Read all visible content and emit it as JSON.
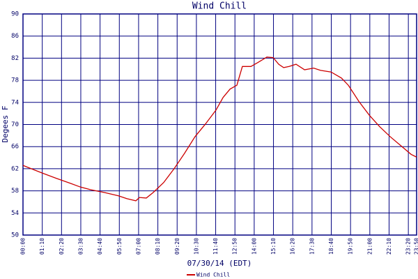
{
  "chart_data": {
    "type": "line",
    "title": "Wind Chill",
    "x_label": "07/30/14 (EDT)",
    "y_label": "Degees F",
    "xlim": [
      0,
      1430
    ],
    "xticks": [
      {
        "value": 0,
        "label": "00:00"
      },
      {
        "value": 70,
        "label": "01:10"
      },
      {
        "value": 140,
        "label": "02:20"
      },
      {
        "value": 210,
        "label": "03:30"
      },
      {
        "value": 280,
        "label": "04:40"
      },
      {
        "value": 350,
        "label": "05:50"
      },
      {
        "value": 420,
        "label": "07:00"
      },
      {
        "value": 490,
        "label": "08:10"
      },
      {
        "value": 560,
        "label": "09:20"
      },
      {
        "value": 630,
        "label": "10:30"
      },
      {
        "value": 700,
        "label": "11:40"
      },
      {
        "value": 770,
        "label": "12:50"
      },
      {
        "value": 840,
        "label": "14:00"
      },
      {
        "value": 910,
        "label": "15:10"
      },
      {
        "value": 980,
        "label": "16:20"
      },
      {
        "value": 1050,
        "label": "17:30"
      },
      {
        "value": 1120,
        "label": "18:40"
      },
      {
        "value": 1190,
        "label": "19:50"
      },
      {
        "value": 1260,
        "label": "21:00"
      },
      {
        "value": 1330,
        "label": "22:10"
      },
      {
        "value": 1400,
        "label": "23:20"
      },
      {
        "value": 1430,
        "label": "23:50"
      }
    ],
    "ylim": [
      50,
      90
    ],
    "yticks": [
      50,
      54,
      58,
      62,
      66,
      70,
      74,
      78,
      82,
      86,
      90
    ],
    "grid": true,
    "x": [
      0,
      30,
      71,
      119,
      170,
      208,
      246,
      296,
      347,
      377,
      410,
      423,
      448,
      473,
      511,
      549,
      587,
      625,
      663,
      701,
      727,
      752,
      777,
      797,
      828,
      853,
      886,
      909,
      929,
      947,
      967,
      992,
      1023,
      1056,
      1081,
      1119,
      1157,
      1182,
      1220,
      1258,
      1296,
      1334,
      1372,
      1410,
      1430
    ],
    "series": [
      {
        "name": "Wind Chill",
        "color": "#cc0000",
        "values": [
          62.6,
          62.0,
          61.2,
          60.3,
          59.4,
          58.7,
          58.2,
          57.7,
          57.1,
          56.6,
          56.2,
          56.8,
          56.7,
          57.7,
          59.5,
          62.0,
          64.8,
          67.8,
          70.1,
          72.6,
          74.9,
          76.4,
          77.1,
          80.5,
          80.5,
          81.2,
          82.2,
          82.1,
          80.9,
          80.3,
          80.5,
          80.9,
          79.9,
          80.2,
          79.8,
          79.5,
          78.4,
          77.1,
          74.2,
          71.7,
          69.6,
          67.8,
          66.2,
          64.6,
          64.1
        ]
      }
    ]
  }
}
